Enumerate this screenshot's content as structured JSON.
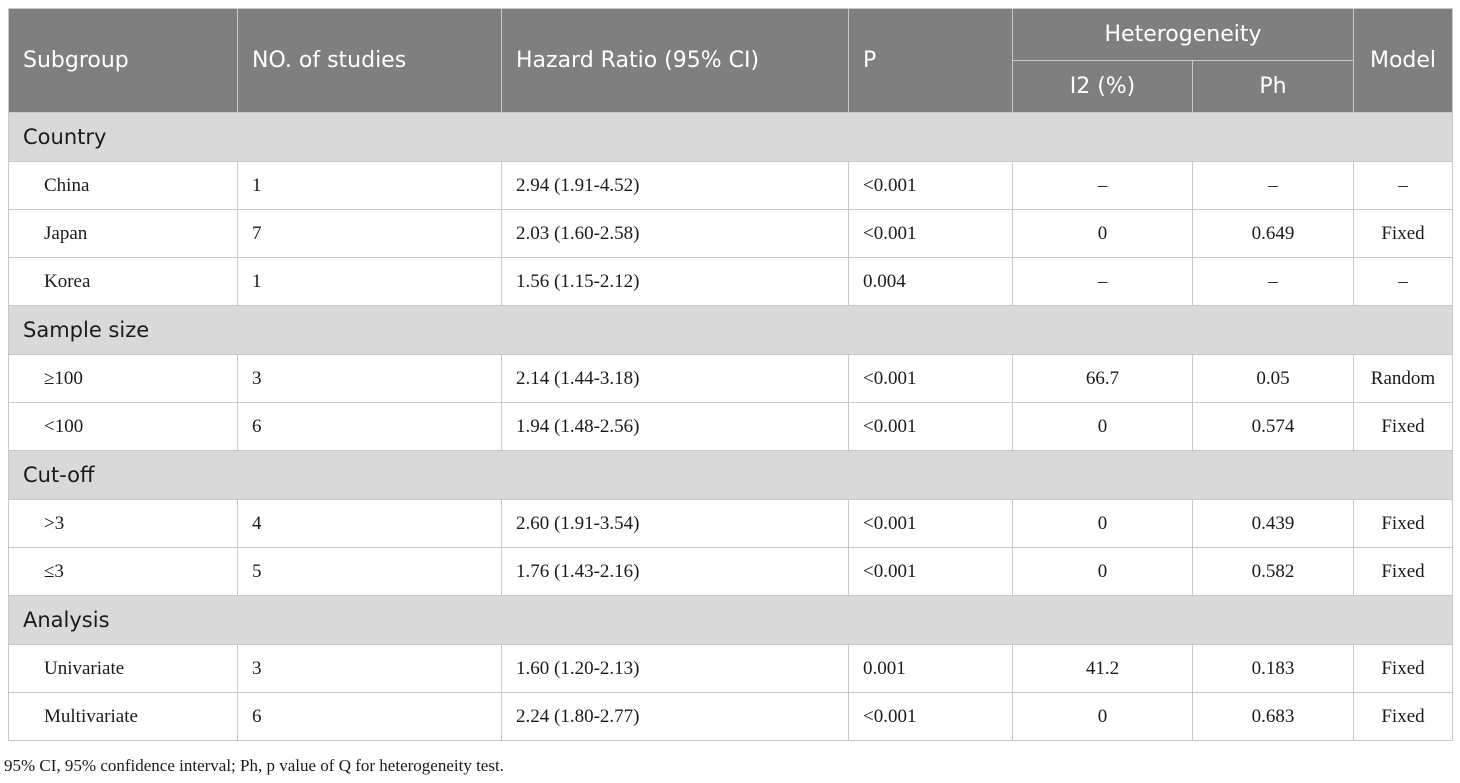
{
  "header": {
    "subgroup": "Subgroup",
    "studies": "NO. of studies",
    "hazard_ratio": "Hazard Ratio (95% CI)",
    "p": "P",
    "heterogeneity": "Heterogeneity",
    "i2": "I2 (%)",
    "ph": "Ph",
    "model": "Model"
  },
  "sections": [
    {
      "title": "Country",
      "rows": [
        {
          "subgroup": "China",
          "studies": "1",
          "hr": "2.94 (1.91-4.52)",
          "p": "<0.001",
          "i2": "–",
          "ph": "–",
          "model": "–"
        },
        {
          "subgroup": "Japan",
          "studies": "7",
          "hr": "2.03 (1.60-2.58)",
          "p": "<0.001",
          "i2": "0",
          "ph": "0.649",
          "model": "Fixed"
        },
        {
          "subgroup": "Korea",
          "studies": "1",
          "hr": "1.56 (1.15-2.12)",
          "p": "0.004",
          "i2": "–",
          "ph": "–",
          "model": "–"
        }
      ]
    },
    {
      "title": "Sample size",
      "rows": [
        {
          "subgroup": "≥100",
          "studies": "3",
          "hr": "2.14 (1.44-3.18)",
          "p": "<0.001",
          "i2": "66.7",
          "ph": "0.05",
          "model": "Random"
        },
        {
          "subgroup": "<100",
          "studies": "6",
          "hr": "1.94 (1.48-2.56)",
          "p": "<0.001",
          "i2": "0",
          "ph": "0.574",
          "model": "Fixed"
        }
      ]
    },
    {
      "title": "Cut-off",
      "rows": [
        {
          "subgroup": ">3",
          "studies": "4",
          "hr": "2.60 (1.91-3.54)",
          "p": "<0.001",
          "i2": "0",
          "ph": "0.439",
          "model": "Fixed"
        },
        {
          "subgroup": "≤3",
          "studies": "5",
          "hr": "1.76 (1.43-2.16)",
          "p": "<0.001",
          "i2": "0",
          "ph": "0.582",
          "model": "Fixed"
        }
      ]
    },
    {
      "title": "Analysis",
      "rows": [
        {
          "subgroup": "Univariate",
          "studies": "3",
          "hr": "1.60 (1.20-2.13)",
          "p": "0.001",
          "i2": "41.2",
          "ph": "0.183",
          "model": "Fixed"
        },
        {
          "subgroup": "Multivariate",
          "studies": "6",
          "hr": "2.24 (1.80-2.77)",
          "p": "<0.001",
          "i2": "0",
          "ph": "0.683",
          "model": "Fixed"
        }
      ]
    }
  ],
  "footnote": "95% CI, 95% confidence interval; Ph, p value of Q for heterogeneity test.",
  "colors": {
    "header_bg": "#7f7f7f",
    "section_bg": "#d9d9d9",
    "grid": "#c8c8c8"
  }
}
